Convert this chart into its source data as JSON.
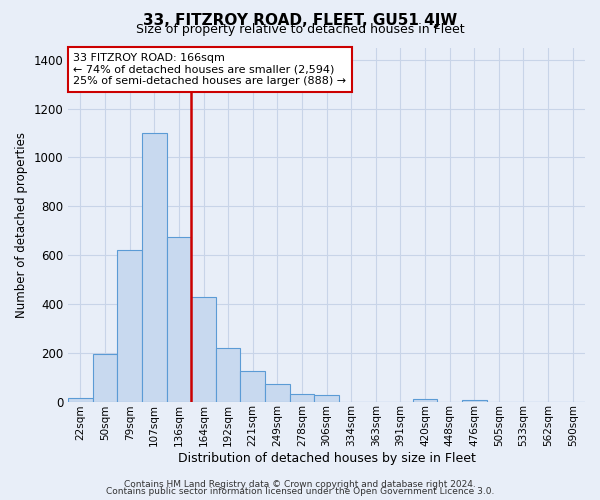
{
  "title": "33, FITZROY ROAD, FLEET, GU51 4JW",
  "subtitle": "Size of property relative to detached houses in Fleet",
  "xlabel": "Distribution of detached houses by size in Fleet",
  "ylabel": "Number of detached properties",
  "bar_labels": [
    "22sqm",
    "50sqm",
    "79sqm",
    "107sqm",
    "136sqm",
    "164sqm",
    "192sqm",
    "221sqm",
    "249sqm",
    "278sqm",
    "306sqm",
    "334sqm",
    "363sqm",
    "391sqm",
    "420sqm",
    "448sqm",
    "476sqm",
    "505sqm",
    "533sqm",
    "562sqm",
    "590sqm"
  ],
  "bar_values": [
    15,
    195,
    620,
    1100,
    675,
    430,
    220,
    125,
    70,
    30,
    25,
    0,
    0,
    0,
    10,
    0,
    5,
    0,
    0,
    0,
    0
  ],
  "bar_color": "#c8d9ef",
  "bar_edge_color": "#5b9bd5",
  "vline_color": "#cc0000",
  "vline_x_index": 5,
  "annotation_text": "33 FITZROY ROAD: 166sqm\n← 74% of detached houses are smaller (2,594)\n25% of semi-detached houses are larger (888) →",
  "annotation_box_color": "#ffffff",
  "annotation_box_edge": "#cc0000",
  "ylim": [
    0,
    1450
  ],
  "yticks": [
    0,
    200,
    400,
    600,
    800,
    1000,
    1200,
    1400
  ],
  "grid_color": "#c8d4e8",
  "bg_color": "#e8eef8",
  "footer1": "Contains HM Land Registry data © Crown copyright and database right 2024.",
  "footer2": "Contains public sector information licensed under the Open Government Licence 3.0."
}
